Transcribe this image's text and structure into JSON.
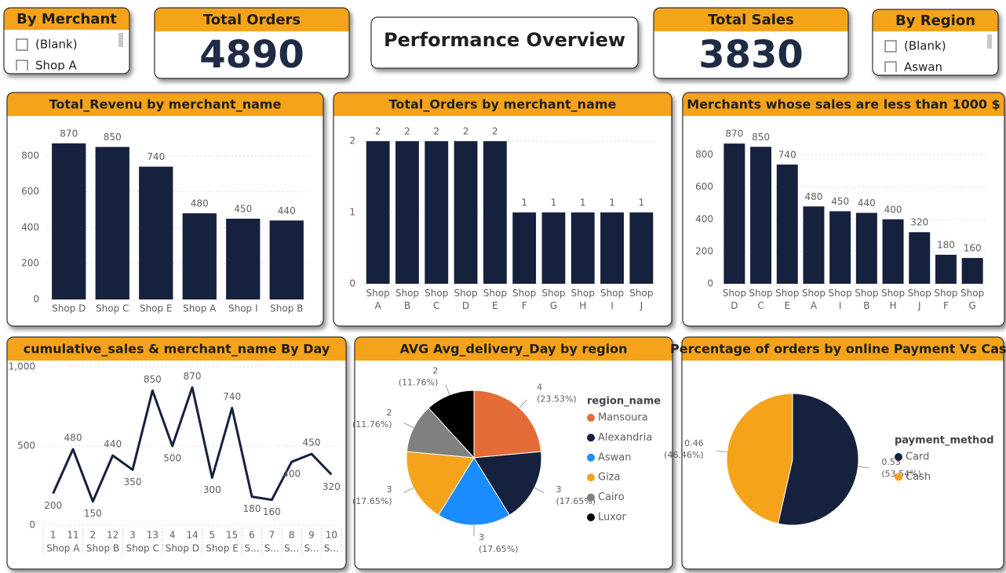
{
  "title": "Performance Overview",
  "cards": [
    {
      "title": "Total Orders",
      "value": 4890
    },
    {
      "title": "Total Sales",
      "value": 3830
    }
  ],
  "slicers": [
    {
      "title": "By Merchant",
      "items": [
        "(Blank)",
        "Shop A"
      ]
    },
    {
      "title": "By Region",
      "items": [
        "(Blank)",
        "Aswan"
      ]
    }
  ],
  "chart_data": [
    {
      "type": "bar",
      "title": "Total_Revenu by merchant_name",
      "categories": [
        "Shop D",
        "Shop C",
        "Shop E",
        "Shop A",
        "Shop I",
        "Shop B"
      ],
      "values": [
        870,
        850,
        740,
        480,
        450,
        440
      ],
      "color": "#16213e",
      "ylim": [
        0,
        900
      ],
      "yticks": [
        0,
        200,
        400,
        600,
        800
      ],
      "grid": true
    },
    {
      "type": "bar",
      "title": "Total_Orders by merchant_name",
      "categories": [
        "Shop A",
        "Shop B",
        "Shop C",
        "Shop D",
        "Shop E",
        "Shop F",
        "Shop G",
        "Shop H",
        "Shop I",
        "Shop J"
      ],
      "values": [
        2,
        2,
        2,
        2,
        2,
        1,
        1,
        1,
        1,
        1
      ],
      "color": "#16213e",
      "ylim": [
        0,
        2.1
      ],
      "yticks": [
        0,
        1,
        2
      ],
      "grid": true
    },
    {
      "type": "bar",
      "title": "Merchants whose sales are less than 1000 $",
      "categories": [
        "Shop D",
        "Shop C",
        "Shop E",
        "Shop A",
        "Shop I",
        "Shop B",
        "Shop H",
        "Shop J",
        "Shop F",
        "Shop G"
      ],
      "values": [
        870,
        850,
        740,
        480,
        450,
        440,
        400,
        320,
        180,
        160
      ],
      "color": "#16213e",
      "ylim": [
        0,
        900
      ],
      "yticks": [
        0,
        200,
        400,
        600,
        800
      ],
      "grid": true
    },
    {
      "type": "line",
      "title": "cumulative_sales & merchant_name By Day",
      "groups": [
        {
          "label": "Shop A",
          "categories": [
            "1",
            "11"
          ]
        },
        {
          "label": "Shop B",
          "categories": [
            "2",
            "12"
          ]
        },
        {
          "label": "Shop C",
          "categories": [
            "3",
            "13"
          ]
        },
        {
          "label": "Shop D",
          "categories": [
            "4",
            "14"
          ]
        },
        {
          "label": "Shop E",
          "categories": [
            "5",
            "15"
          ]
        },
        {
          "label": "S...",
          "categories": [
            "6"
          ]
        },
        {
          "label": "S...",
          "categories": [
            "7"
          ]
        },
        {
          "label": "S...",
          "categories": [
            "8"
          ]
        },
        {
          "label": "S...",
          "categories": [
            "9"
          ]
        },
        {
          "label": "S...",
          "categories": [
            "10"
          ]
        }
      ],
      "values": [
        200,
        480,
        150,
        440,
        350,
        850,
        500,
        870,
        300,
        740,
        180,
        160,
        400,
        450,
        320
      ],
      "color": "#16213e",
      "ylim": [
        0,
        1000
      ],
      "yticks": [
        0,
        500,
        {
          "value": 1000,
          "label": "1,000"
        }
      ],
      "grid": true
    },
    {
      "type": "pie",
      "title": "AVG Avg_delivery_Day by region",
      "legend_title": "region_name",
      "categories": [
        "Mansoura",
        "Alexandria",
        "Aswan",
        "Giza",
        "Cairo",
        "Luxor"
      ],
      "values": [
        4,
        3,
        3,
        3,
        2,
        2
      ],
      "value_labels": [
        "4 (23.53%)",
        "3 (17.65%)",
        "3 (17.65%)",
        "3 (17.65%)",
        "2 (11.76%)",
        "2 (11.76%)"
      ],
      "colors": [
        "#e46c37",
        "#16213e",
        "#1a8cff",
        "#f5a31a",
        "#808080",
        "#000000"
      ]
    },
    {
      "type": "pie",
      "title": "Percentage of orders by online Payment Vs Cash",
      "legend_title": "payment_method",
      "categories": [
        "Card",
        "Cash"
      ],
      "values": [
        0.53,
        0.46
      ],
      "value_labels": [
        "0.53 (53.54%)",
        "0.46 (46.46%)"
      ],
      "colors": [
        "#16213e",
        "#f5a31a"
      ]
    }
  ]
}
